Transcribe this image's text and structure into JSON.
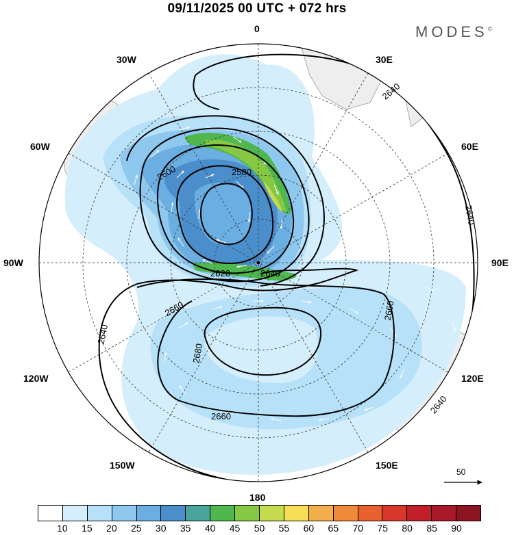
{
  "title": "09/11/2025  00 UTC  + 072 hrs",
  "brand": "MODES",
  "brand_mark": "©",
  "longitude_labels": {
    "lon_0": "0",
    "lon_30e": "30E",
    "lon_60e": "60E",
    "lon_90e": "90E",
    "lon_120e": "120E",
    "lon_150e": "150E",
    "lon_180": "180",
    "lon_150w": "150W",
    "lon_120w": "120W",
    "lon_90w": "90W",
    "lon_60w": "60W",
    "lon_30w": "30W"
  },
  "contour_labels": [
    "2580",
    "2600",
    "2620",
    "2640",
    "2640",
    "2640",
    "2640",
    "2640",
    "2660",
    "2660",
    "2660",
    "2680"
  ],
  "reference_vector": "50",
  "colorbar": {
    "ticks": [
      "10",
      "15",
      "20",
      "25",
      "30",
      "35",
      "40",
      "45",
      "50",
      "55",
      "60",
      "65",
      "70",
      "75",
      "80",
      "85",
      "90"
    ],
    "colors": [
      "#ffffff",
      "#d5eefc",
      "#b7e1f8",
      "#8ec8ef",
      "#6aaee2",
      "#4a8ecb",
      "#47a59c",
      "#4fb74d",
      "#86c743",
      "#c6db4d",
      "#f6df56",
      "#f3ae4a",
      "#ef8a39",
      "#e8612f",
      "#d8382c",
      "#c21f2a",
      "#a8192a",
      "#8c1521"
    ]
  }
}
